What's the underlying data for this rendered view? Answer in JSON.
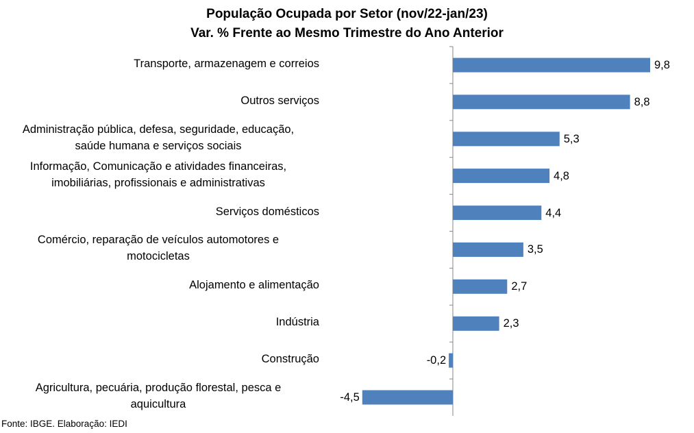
{
  "chart_data": {
    "type": "bar",
    "orientation": "horizontal",
    "title": "População Ocupada por Setor (nov/22-jan/23)",
    "subtitle": "Var. % Frente ao Mesmo Trimestre do Ano Anterior",
    "categories": [
      [
        "Transporte, armazenagem e correios"
      ],
      [
        "Outros serviços"
      ],
      [
        "Administração pública, defesa, seguridade, educação,",
        "saúde humana e serviços sociais"
      ],
      [
        "Informação, Comunicação e atividades financeiras,",
        "imobiliárias, profissionais e administrativas"
      ],
      [
        "Serviços domésticos"
      ],
      [
        "Comércio, reparação de veículos automotores e",
        "motocicletas"
      ],
      [
        "Alojamento e alimentação"
      ],
      [
        "Indústria"
      ],
      [
        "Construção"
      ],
      [
        "Agricultura, pecuária, produção florestal, pesca e",
        "aquicultura"
      ]
    ],
    "values": [
      9.8,
      8.8,
      5.3,
      4.8,
      4.4,
      3.5,
      2.7,
      2.3,
      -0.2,
      -4.5
    ],
    "value_labels": [
      "9,8",
      "8,8",
      "5,3",
      "4,8",
      "4,4",
      "3,5",
      "2,7",
      "2,3",
      "-0,2",
      "-4,5"
    ],
    "xlim": [
      -4.5,
      9.8
    ],
    "bar_color": "#4F81BD",
    "axis_color": "#868686",
    "grid": false,
    "legend": "none"
  },
  "source": "Fonte: IBGE. Elaboração: IEDI"
}
